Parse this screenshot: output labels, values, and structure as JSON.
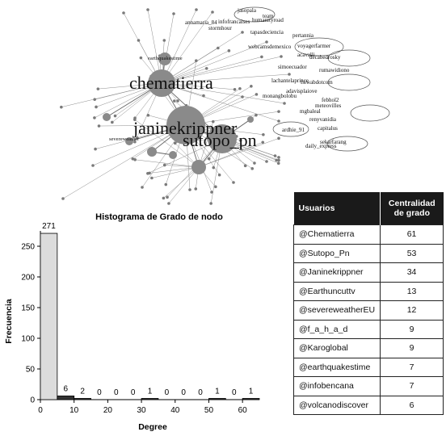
{
  "graph": {
    "labels": {
      "chematierra": "chematierra",
      "janinekrippner": "janinekrippner",
      "sutopo_pn": "sutopo_pn",
      "team": "team",
      "jasopala": "jasopala",
      "humanityroad": "humanityroad",
      "annamaria": "annamaria_84",
      "infofrancaises": "infofrancaises",
      "stormhour": "stormhour",
      "tapasdeciencia": "tapasdeciencia",
      "pertannia": "pertannia",
      "webcamsdemexico": "webcamsdemexico",
      "voyagerfarmer": "voyagerfarmer",
      "acavalli": "acavalli",
      "decabedrosky": "decabedrosky",
      "simoecuador": "simoecuador",
      "rumawidiono": "rumawidiono",
      "lachantelaprince": "lachantelaprince",
      "fsiwabdotcom": "fsiwabdotcom",
      "adavisplaiove": "adavisplaiove",
      "monangbolobu": "monangbolobu",
      "febhol2": "febhol2",
      "meteovilles": "meteovilles",
      "mgbaleal": "mgbaleal",
      "renyvanidia": "renyvanidia",
      "ardhie_91": "ardhie_91",
      "capitalus": "capitalus",
      "sekarfarang": "sekarfarang",
      "daily_express": "daily_express",
      "earthquakestime": "earthquakestime",
      "severeweather": "severeweather"
    }
  },
  "chart_data": [
    {
      "type": "bar",
      "title": "Histograma de Grado de nodo",
      "xlabel": "Degree",
      "ylabel": "Frecuencia",
      "bins": [
        [
          0,
          5
        ],
        [
          5,
          10
        ],
        [
          10,
          15
        ],
        [
          15,
          20
        ],
        [
          20,
          25
        ],
        [
          25,
          30
        ],
        [
          30,
          35
        ],
        [
          35,
          40
        ],
        [
          40,
          45
        ],
        [
          45,
          50
        ],
        [
          50,
          55
        ],
        [
          55,
          60
        ],
        [
          60,
          65
        ]
      ],
      "values": [
        271,
        6,
        2,
        0,
        0,
        0,
        1,
        0,
        0,
        0,
        1,
        0,
        1
      ],
      "value_labels": [
        "271",
        "6",
        "2",
        "0",
        "0",
        "0",
        "1",
        "0",
        "0",
        "0",
        "1",
        "0",
        "1"
      ],
      "xlim": [
        0,
        65
      ],
      "ylim": [
        0,
        275
      ],
      "xticks": [
        0,
        10,
        20,
        30,
        40,
        50,
        60
      ],
      "yticks": [
        0,
        50,
        100,
        150,
        200,
        250
      ],
      "grid": false
    },
    {
      "type": "table",
      "columns": [
        "Usuarios",
        "Centralidad de grado"
      ],
      "rows": [
        [
          "@Chematierra",
          "61"
        ],
        [
          "@Sutopo_Pn",
          "53"
        ],
        [
          "@Janinekrippner",
          "34"
        ],
        [
          "@Earthuncuttv",
          "13"
        ],
        [
          "@severeweatherEU",
          "12"
        ],
        [
          "@f_a_h_a_d",
          "9"
        ],
        [
          "@Karoglobal",
          "9"
        ],
        [
          "@earthquakestime",
          "7"
        ],
        [
          "@infobencana",
          "7"
        ],
        [
          "@volcanodiscover",
          "6"
        ]
      ]
    }
  ],
  "colors": {
    "hub": "#8a8a8a",
    "node": "#7a7a7a",
    "edge": "#8c8c8c",
    "bar_fill": "#dcdcdc",
    "header_bg": "#1a1a1a"
  }
}
